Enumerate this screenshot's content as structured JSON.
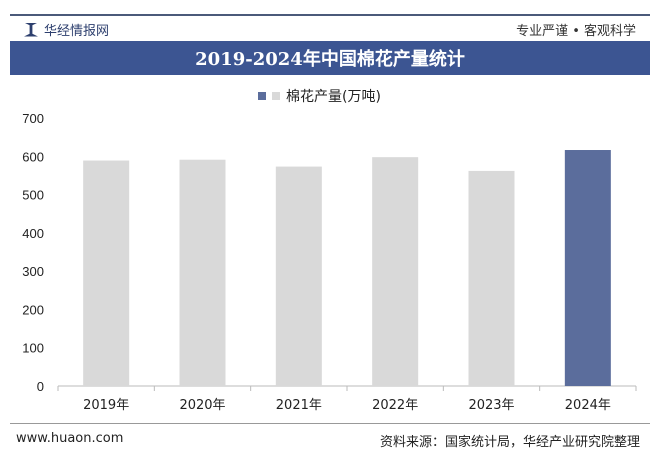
{
  "header": {
    "brand": "华经情报网",
    "slogan": "专业严谨 • 客观科学"
  },
  "chart_data": {
    "type": "bar",
    "title": "2019-2024年中国棉花产量统计",
    "categories": [
      "2019年",
      "2020年",
      "2021年",
      "2022年",
      "2023年",
      "2024年"
    ],
    "series": [
      {
        "name": "棉花产量(万吨)",
        "values": [
          588.9,
          591.0,
          573.1,
          597.7,
          561.8,
          616.4
        ]
      }
    ],
    "ylim": [
      0,
      700
    ],
    "yticks": [
      0,
      100,
      200,
      300,
      400,
      500,
      600,
      700
    ],
    "grid": false,
    "legend": "top",
    "colors": {
      "default": "#d9d9d9",
      "highlight": "#5b6d9c"
    }
  },
  "footer": {
    "website": "www.huaon.com",
    "source": "资料来源：国家统计局，华经产业研究院整理"
  }
}
